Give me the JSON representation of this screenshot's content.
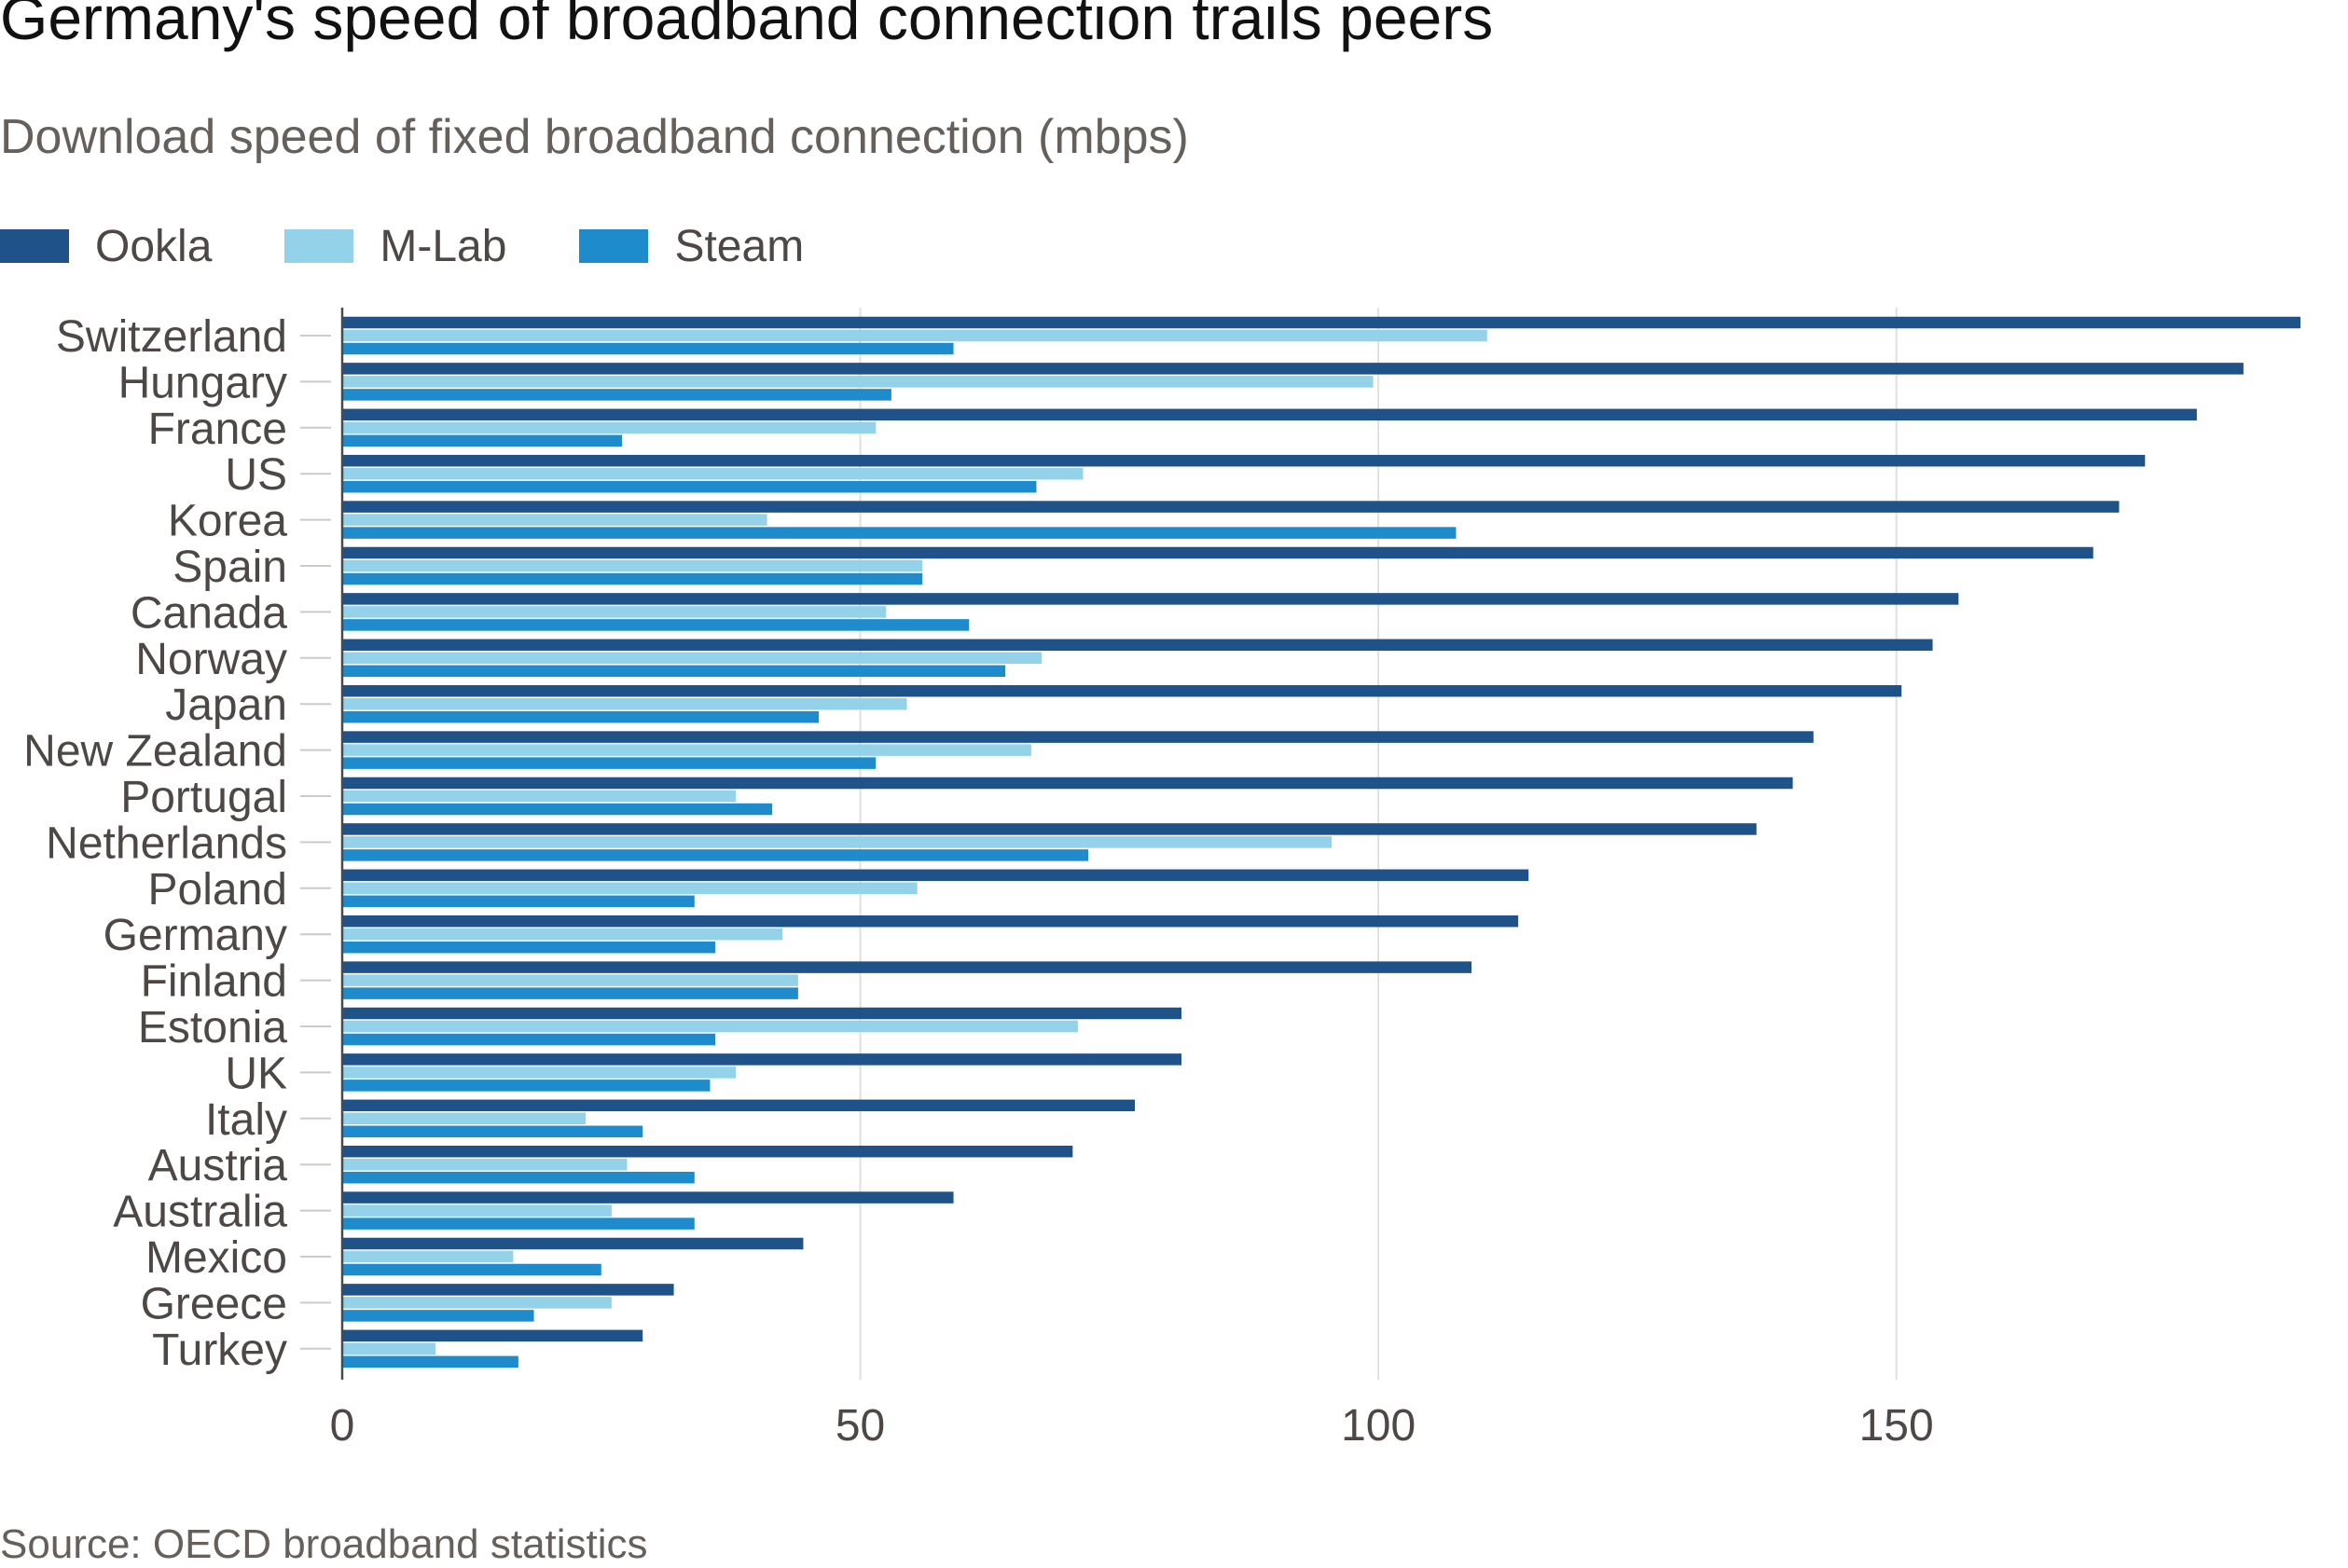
{
  "header": {
    "title": "Germany's speed of broadband connection trails peers",
    "subtitle": "Download speed of fixed broadband connection (mbps)"
  },
  "footer": {
    "source": "Source: OECD broadband statistics"
  },
  "chart_data": {
    "type": "bar",
    "orientation": "horizontal",
    "title": "Germany's speed of broadband connection trails peers",
    "subtitle": "Download speed of fixed broadband connection (mbps)",
    "xlabel": "",
    "ylabel": "",
    "xlim": [
      0,
      189
    ],
    "xticks": [
      0,
      50,
      100,
      150
    ],
    "grid": "vertical",
    "legend": "top-left",
    "categories": [
      "Switzerland",
      "Hungary",
      "France",
      "US",
      "Korea",
      "Spain",
      "Canada",
      "Norway",
      "Japan",
      "New Zealand",
      "Portugal",
      "Netherlands",
      "Poland",
      "Germany",
      "Finland",
      "Estonia",
      "UK",
      "Italy",
      "Austria",
      "Australia",
      "Mexico",
      "Greece",
      "Turkey"
    ],
    "series": [
      {
        "name": "Ookla",
        "color": "#1f5289",
        "values": [
          189,
          183.5,
          179,
          174,
          171.5,
          169,
          156,
          153.5,
          150.5,
          142,
          140,
          136.5,
          114.5,
          113.5,
          109,
          81,
          81,
          76.5,
          70.5,
          59,
          44.5,
          32,
          29
        ]
      },
      {
        "name": "M-Lab",
        "color": "#93d2e8",
        "values": [
          110.5,
          99.5,
          51.5,
          71.5,
          41,
          56,
          52.5,
          67.5,
          54.5,
          66.5,
          38,
          95.5,
          55.5,
          42.5,
          44,
          71,
          38,
          23.5,
          27.5,
          26,
          16.5,
          26,
          9
        ]
      },
      {
        "name": "Steam",
        "color": "#1d8bcc",
        "values": [
          59,
          53,
          27,
          67,
          107.5,
          56,
          60.5,
          64,
          46,
          51.5,
          41.5,
          72,
          34,
          36,
          44,
          36,
          35.5,
          29,
          34,
          34,
          25,
          18.5,
          17
        ]
      }
    ]
  }
}
